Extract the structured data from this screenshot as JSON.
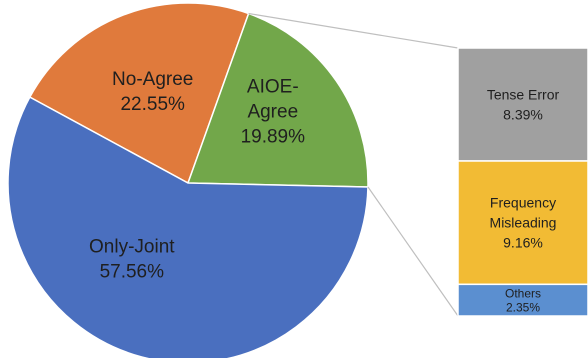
{
  "chart_data": {
    "type": "bar-of-pie",
    "pie": {
      "slices": [
        {
          "label": "No-Agree",
          "value": 22.55,
          "display": "22.55%",
          "color": "#E07A3C"
        },
        {
          "label": "AIOE-Agree",
          "value": 19.89,
          "display": "19.89%",
          "color": "#72A74A"
        },
        {
          "label": "Only-Joint",
          "value": 57.56,
          "display": "57.56%",
          "color": "#4A6FBF"
        }
      ],
      "label_lines": {
        "No-Agree": [
          "No-Agree"
        ],
        "AIOE-Agree": [
          "AIOE-",
          "Agree"
        ],
        "Only-Joint": [
          "Only-Joint"
        ]
      }
    },
    "breakdown_of": "AIOE-Agree",
    "bar": {
      "segments": [
        {
          "label": "Tense Error",
          "value": 8.39,
          "display": "8.39%",
          "color": "#A0A0A0",
          "label_lines": [
            "Tense Error"
          ]
        },
        {
          "label": "Frequency Misleading",
          "value": 9.16,
          "display": "9.16%",
          "color": "#F2BB34",
          "label_lines": [
            "Frequency",
            "Misleading"
          ]
        },
        {
          "label": "Others",
          "value": 2.35,
          "display": "2.35%",
          "color": "#5B8FD0",
          "label_lines": [
            "Others"
          ]
        }
      ]
    },
    "connector_color": "#BFBFBF"
  }
}
